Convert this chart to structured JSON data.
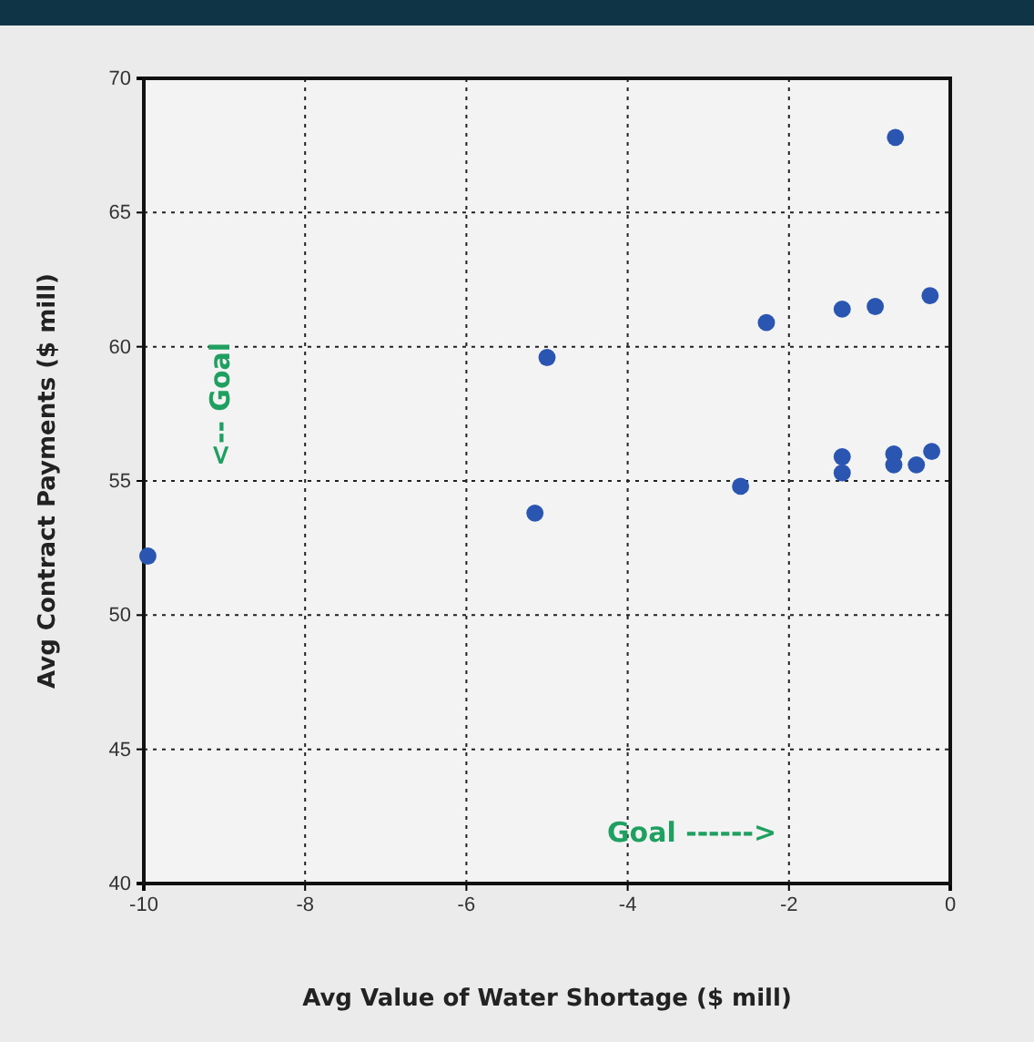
{
  "chart_data": {
    "type": "scatter",
    "xlabel": "Avg Value of Water Shortage ($ mill)",
    "ylabel": "Avg Contract Payments ($ mill)",
    "annotations": [
      "<-- Goal",
      "Goal ------>"
    ],
    "x": [
      -9.95,
      -5.15,
      -5.0,
      -2.6,
      -2.28,
      -1.34,
      -0.93,
      -0.68,
      -0.25,
      -1.34,
      -1.34,
      -0.7,
      -0.7,
      -0.42,
      -0.23
    ],
    "series": [
      {
        "color": "#2a55b0",
        "values": [
          52.2,
          53.8,
          59.6,
          54.8,
          60.9,
          61.4,
          61.5,
          67.8,
          61.9,
          55.9,
          55.3,
          56.0,
          55.6,
          55.6,
          56.1
        ]
      }
    ],
    "xlim": [
      -10,
      0
    ],
    "ylim": [
      40,
      70
    ],
    "xticks": [
      -10,
      -8,
      -6,
      -4,
      -2,
      0
    ],
    "yticks": [
      40,
      45,
      50,
      55,
      60,
      65,
      70
    ],
    "grid": true,
    "marker": "circle"
  }
}
